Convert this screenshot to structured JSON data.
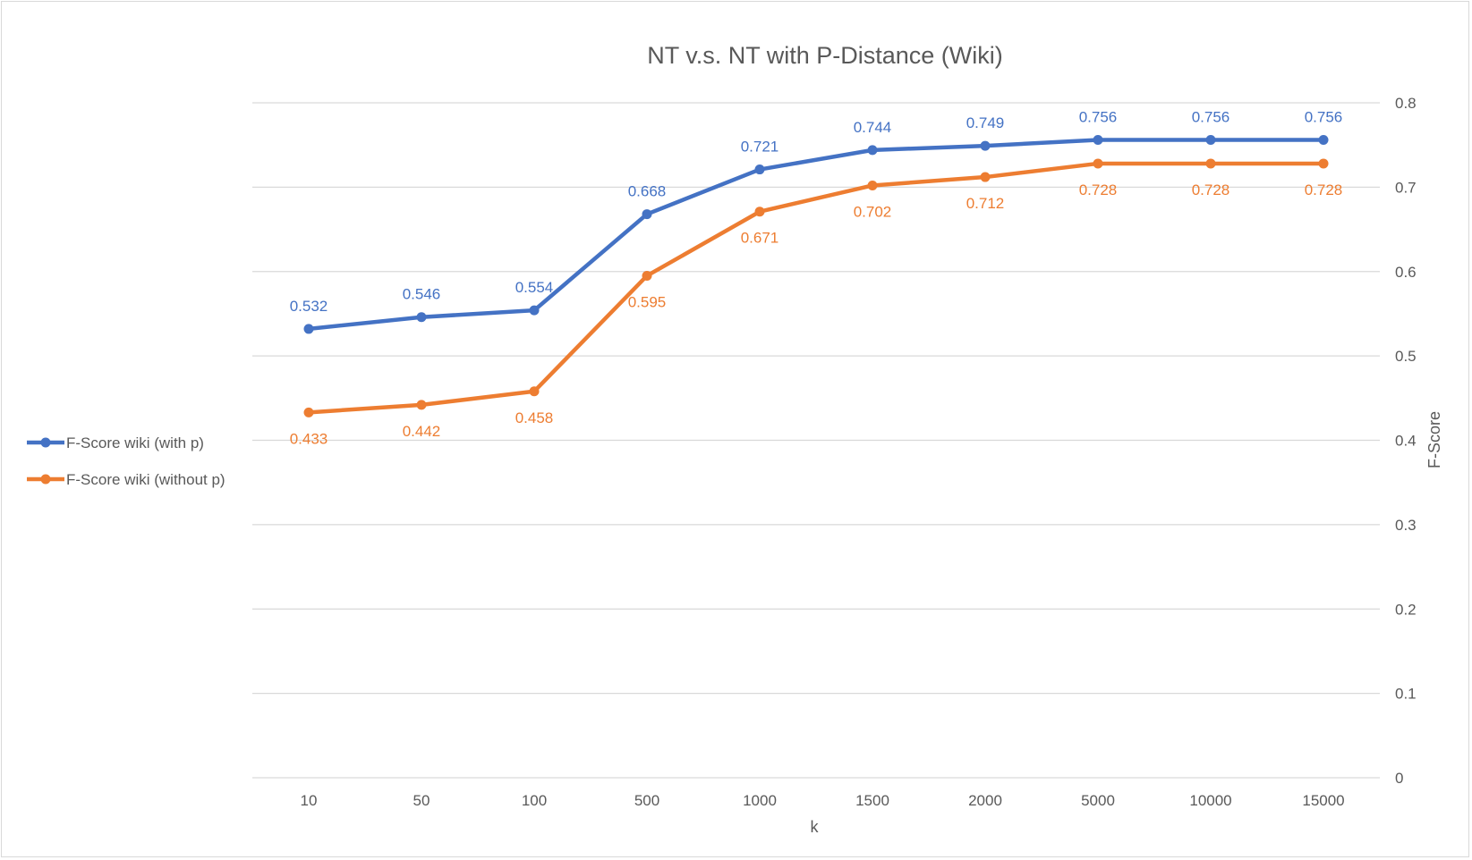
{
  "chart_data": {
    "type": "line",
    "title": "NT v.s. NT with P-Distance (Wiki)",
    "xlabel": "k",
    "ylabel": "F-Score",
    "categories": [
      "10",
      "50",
      "100",
      "500",
      "1000",
      "1500",
      "2000",
      "5000",
      "10000",
      "15000"
    ],
    "ylim": [
      0,
      0.8
    ],
    "yticks": [
      "0",
      "0.1",
      "0.2",
      "0.3",
      "0.4",
      "0.5",
      "0.6",
      "0.7",
      "0.8"
    ],
    "y_axis_side": "right",
    "grid": true,
    "legend_position": "left",
    "series": [
      {
        "name": "F-Score wiki (with p)",
        "color": "#4472C4",
        "values": [
          0.532,
          0.546,
          0.554,
          0.668,
          0.721,
          0.744,
          0.749,
          0.756,
          0.756,
          0.756
        ],
        "labels": [
          "0.532",
          "0.546",
          "0.554",
          "0.668",
          "0.721",
          "0.744",
          "0.749",
          "0.756",
          "0.756",
          "0.756"
        ],
        "label_position": "above"
      },
      {
        "name": "F-Score wiki (without p)",
        "color": "#ED7D31",
        "values": [
          0.433,
          0.442,
          0.458,
          0.595,
          0.671,
          0.702,
          0.712,
          0.728,
          0.728,
          0.728
        ],
        "labels": [
          "0.433",
          "0.442",
          "0.458",
          "0.595",
          "0.671",
          "0.702",
          "0.712",
          "0.728",
          "0.728",
          "0.728"
        ],
        "label_position": "below"
      }
    ]
  }
}
